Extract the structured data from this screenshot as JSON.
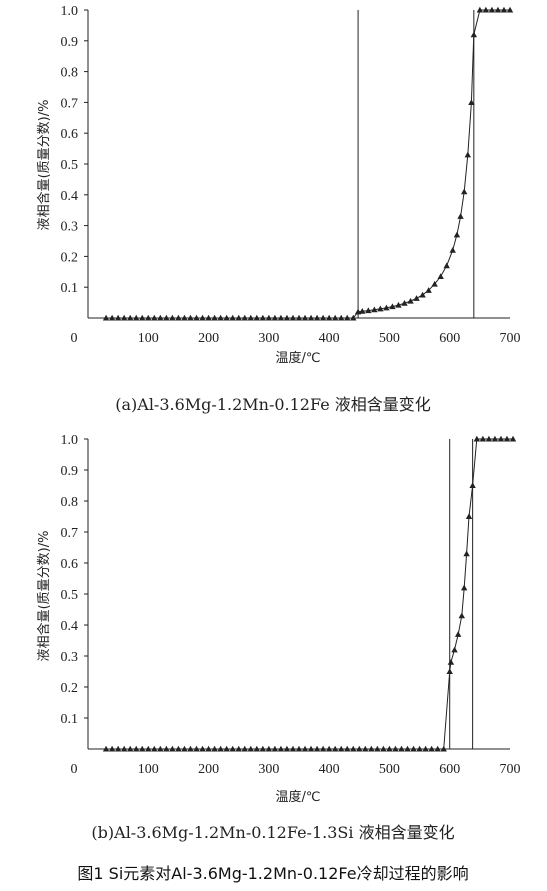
{
  "chart_data": [
    {
      "type": "line",
      "panel": "a",
      "xlabel": "温度/℃",
      "ylabel": "液相含量(质量分数)/%",
      "caption": "(a)Al-3.6Mg-1.2Mn-0.12Fe 液相含量变化",
      "xlim": [
        0,
        700
      ],
      "ylim": [
        0,
        1.0
      ],
      "xticks": [
        "0",
        "100",
        "200",
        "300",
        "400",
        "500",
        "600",
        "700"
      ],
      "yticks": [
        "0.1",
        "0.2",
        "0.3",
        "0.4",
        "0.5",
        "0.6",
        "0.7",
        "0.8",
        "0.9",
        "1.0"
      ],
      "grid": false,
      "marker": "triangle",
      "vlines": [
        448,
        640
      ],
      "series": [
        {
          "x": [
            30,
            40,
            50,
            60,
            70,
            80,
            90,
            100,
            110,
            120,
            130,
            140,
            150,
            160,
            170,
            180,
            190,
            200,
            210,
            220,
            230,
            240,
            250,
            260,
            270,
            280,
            290,
            300,
            310,
            320,
            330,
            340,
            350,
            360,
            370,
            380,
            390,
            400,
            410,
            420,
            430,
            440,
            448,
            455,
            465,
            475,
            485,
            495,
            505,
            515,
            525,
            535,
            545,
            555,
            565,
            575,
            585,
            595,
            605,
            612,
            618,
            624,
            630,
            636,
            640,
            650,
            660,
            670,
            680,
            690,
            700
          ],
          "values": [
            0,
            0,
            0,
            0,
            0,
            0,
            0,
            0,
            0,
            0,
            0,
            0,
            0,
            0,
            0,
            0,
            0,
            0,
            0,
            0,
            0,
            0,
            0,
            0,
            0,
            0,
            0,
            0,
            0,
            0,
            0,
            0,
            0,
            0,
            0,
            0,
            0,
            0,
            0,
            0,
            0,
            0,
            0.02,
            0.022,
            0.024,
            0.027,
            0.03,
            0.033,
            0.037,
            0.042,
            0.048,
            0.055,
            0.064,
            0.075,
            0.09,
            0.11,
            0.135,
            0.17,
            0.22,
            0.27,
            0.33,
            0.41,
            0.53,
            0.7,
            0.92,
            1.0,
            1.0,
            1.0,
            1.0,
            1.0,
            1.0
          ]
        }
      ]
    },
    {
      "type": "line",
      "panel": "b",
      "xlabel": "温度/℃",
      "ylabel": "液相含量(质量分数)/%",
      "caption": "(b)Al-3.6Mg-1.2Mn-0.12Fe-1.3Si 液相含量变化",
      "xlim": [
        0,
        700
      ],
      "ylim": [
        0,
        1.0
      ],
      "xticks": [
        "0",
        "100",
        "200",
        "300",
        "400",
        "500",
        "600",
        "700"
      ],
      "yticks": [
        "0.1",
        "0.2",
        "0.3",
        "0.4",
        "0.5",
        "0.6",
        "0.7",
        "0.8",
        "0.9",
        "1.0"
      ],
      "grid": false,
      "marker": "triangle",
      "vlines": [
        600,
        638
      ],
      "series": [
        {
          "x": [
            30,
            40,
            50,
            60,
            70,
            80,
            90,
            100,
            110,
            120,
            130,
            140,
            150,
            160,
            170,
            180,
            190,
            200,
            210,
            220,
            230,
            240,
            250,
            260,
            270,
            280,
            290,
            300,
            310,
            320,
            330,
            340,
            350,
            360,
            370,
            380,
            390,
            400,
            410,
            420,
            430,
            440,
            450,
            460,
            470,
            480,
            490,
            500,
            510,
            520,
            530,
            540,
            550,
            560,
            570,
            580,
            590,
            600,
            602,
            608,
            614,
            620,
            624,
            628,
            632,
            638,
            645,
            655,
            665,
            675,
            685,
            695,
            705
          ],
          "values": [
            0,
            0,
            0,
            0,
            0,
            0,
            0,
            0,
            0,
            0,
            0,
            0,
            0,
            0,
            0,
            0,
            0,
            0,
            0,
            0,
            0,
            0,
            0,
            0,
            0,
            0,
            0,
            0,
            0,
            0,
            0,
            0,
            0,
            0,
            0,
            0,
            0,
            0,
            0,
            0,
            0,
            0,
            0,
            0,
            0,
            0,
            0,
            0,
            0,
            0,
            0,
            0,
            0,
            0,
            0,
            0,
            0,
            0.25,
            0.28,
            0.32,
            0.37,
            0.43,
            0.52,
            0.63,
            0.75,
            0.85,
            1.0,
            1.0,
            1.0,
            1.0,
            1.0,
            1.0,
            1.0
          ]
        }
      ]
    }
  ],
  "figure_caption": "图1   Si元素对Al-3.6Mg-1.2Mn-0.12Fe冷却过程的影响"
}
